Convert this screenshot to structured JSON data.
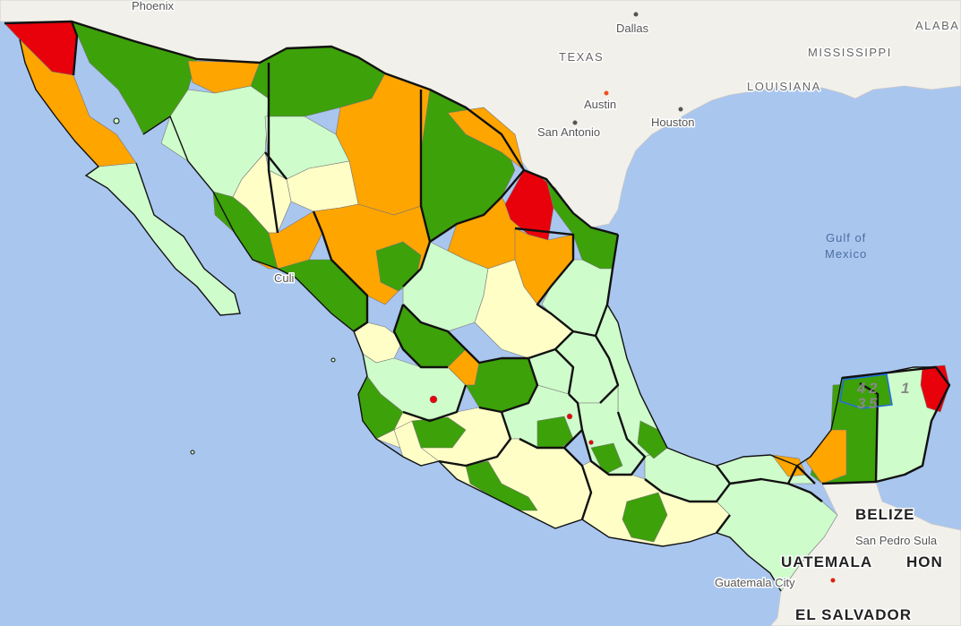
{
  "map": {
    "legend_colors": {
      "red": "#e8000b",
      "orange": "#ffa500",
      "dark_green": "#3da10a",
      "light_green": "#cffccb",
      "pale_yellow": "#fffec7"
    },
    "base_colors": {
      "water": "#a9c6ef",
      "land": "#f2f0ea",
      "state_border": "#111111",
      "municipal_border": "#777777"
    },
    "labels": {
      "phoenix": "Phoenix",
      "dallas": "Dallas",
      "texas": "TEXAS",
      "mississippi": "MISSISSIPPI",
      "alabama": "ALABA",
      "louisiana": "LOUISIANA",
      "austin": "Austin",
      "houston": "Houston",
      "san_antonio": "San Antonio",
      "gulf_line1": "Gulf of",
      "gulf_line2": "Mexico",
      "culiacan": "Culi",
      "belize": "BELIZE",
      "san_pedro_sula": "San Pedro Sula",
      "guatemala": "UATEMALA",
      "honduras": "HON",
      "guatemala_city": "Guatemala City",
      "el_salvador": "EL SALVADOR"
    },
    "yucatan_district_numbers": [
      "4",
      "2",
      "3",
      "5",
      "1"
    ]
  }
}
